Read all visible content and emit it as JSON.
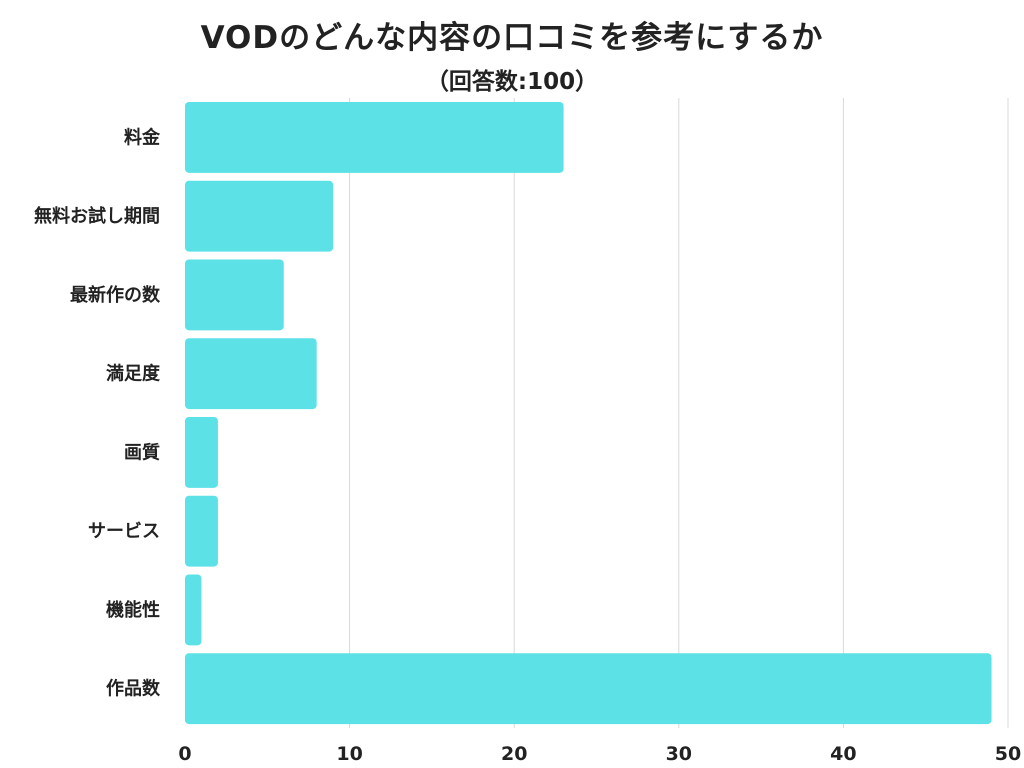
{
  "chart_data": {
    "type": "bar",
    "orientation": "horizontal",
    "title": "VODのどんな内容の口コミを参考にするか",
    "subtitle": "（回答数:100）",
    "categories": [
      "料金",
      "無料お試し期間",
      "最新作の数",
      "満足度",
      "画質",
      "サービス",
      "機能性",
      "作品数"
    ],
    "values": [
      23,
      9,
      6,
      8,
      2,
      2,
      1,
      49
    ],
    "xlim": [
      0,
      50
    ],
    "xticks": [
      "0",
      "10",
      "20",
      "30",
      "40",
      "50"
    ],
    "grid": "vertical",
    "bar_color": "#5ce1e6",
    "grid_color": "#d9d9d9"
  }
}
